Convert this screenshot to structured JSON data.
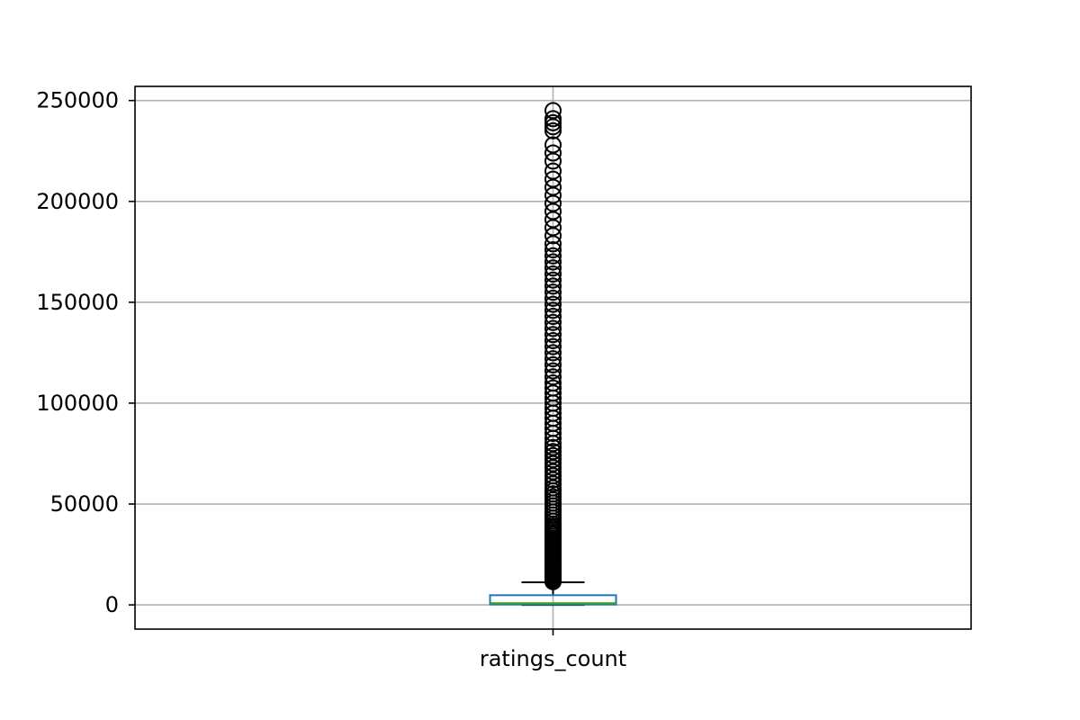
{
  "chart_data": {
    "type": "box",
    "title": "",
    "xlabel": "",
    "ylabel": "",
    "categories": [
      "ratings_count"
    ],
    "ylim": [
      -12000,
      257000
    ],
    "yticks": [
      0,
      50000,
      100000,
      150000,
      200000,
      250000
    ],
    "ytick_labels": [
      "0",
      "50000",
      "100000",
      "150000",
      "200000",
      "250000"
    ],
    "grid": true,
    "legend": "none",
    "colors": {
      "box": "#1f77b4",
      "median": "#2ca02c",
      "whisker": "#000000",
      "outlier": "#000000",
      "grid": "#b0b0b0"
    },
    "box": {
      "whisker_low": 5,
      "q1": 200,
      "median": 750,
      "q3": 4800,
      "whisker_high": 11200
    },
    "outliers": [
      11500,
      12000,
      12500,
      13000,
      13500,
      14000,
      14500,
      15000,
      15500,
      16000,
      16500,
      17000,
      17500,
      18000,
      18500,
      19000,
      19500,
      20000,
      21000,
      22000,
      23000,
      24000,
      25000,
      26000,
      27000,
      28000,
      29000,
      30000,
      31000,
      32000,
      33000,
      34000,
      35000,
      36000,
      37000,
      38000,
      39000,
      40000,
      41500,
      43000,
      44500,
      46000,
      47500,
      49000,
      50500,
      52000,
      53500,
      55000,
      56500,
      58000,
      60000,
      62000,
      64000,
      66000,
      68000,
      70000,
      72000,
      74000,
      76000,
      78000,
      80000,
      82500,
      85000,
      87500,
      90000,
      92500,
      95000,
      97500,
      100000,
      102500,
      105000,
      107500,
      110000,
      113000,
      116000,
      119000,
      122000,
      125000,
      128000,
      131000,
      134000,
      137000,
      140000,
      143000,
      146000,
      149000,
      152000,
      155000,
      158000,
      161000,
      164000,
      167000,
      170000,
      173000,
      176000,
      179000,
      183000,
      187000,
      191000,
      195000,
      199000,
      203000,
      207000,
      211000,
      215000,
      220000,
      224000,
      228000,
      235000,
      237000,
      239000,
      241000,
      245000
    ]
  }
}
